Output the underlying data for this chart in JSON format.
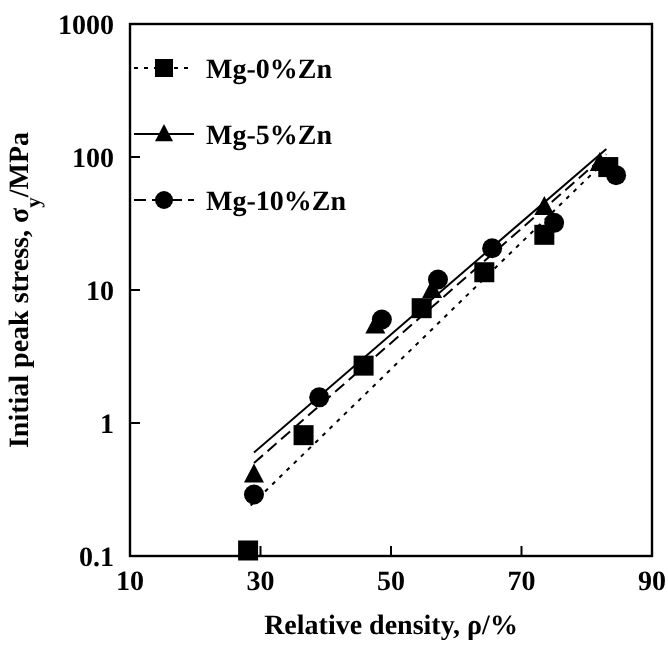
{
  "chart_data": {
    "type": "scatter",
    "xlabel": "Relative density, ρ/%",
    "ylabel": "Initial  peak stress, σ$_{y}$/MPa",
    "log": "y",
    "grid": false,
    "legend": "top left",
    "xlim": [
      10,
      90
    ],
    "xticks": [
      10,
      30,
      50,
      70,
      90
    ],
    "ylim": [
      0.1,
      1000
    ],
    "yticks": [
      0.1,
      1,
      10,
      100,
      1000
    ],
    "series": [
      {
        "name": "Mg-0%Zn",
        "color": "#000000",
        "marker": "square",
        "x": [
          28.1,
          36.6,
          45.8,
          54.7,
          64.3,
          73.5,
          83.3
        ],
        "values": [
          0.11,
          0.81,
          2.7,
          7.3,
          13.6,
          26,
          84
        ]
      },
      {
        "name": "Mg-5%Zn",
        "color": "#000000",
        "marker": "triangle",
        "x": [
          29,
          47.6,
          56.3,
          73.5,
          82
        ],
        "values": [
          0.41,
          5.4,
          10,
          42,
          90
        ]
      },
      {
        "name": "Mg-10%Zn",
        "color": "#000000",
        "marker": "circle",
        "x": [
          29,
          39,
          48.6,
          57.2,
          65.5,
          75,
          84.5
        ],
        "values": [
          0.29,
          1.56,
          6,
          12,
          20.6,
          32,
          73
        ]
      },
      {
        "type": "line",
        "color": "#000000",
        "line_style": "dotted",
        "x": [
          28.5,
          83
        ],
        "values": [
          0.24,
          95
        ]
      },
      {
        "type": "line",
        "color": "#000000",
        "line_style": "solid",
        "x": [
          29,
          83
        ],
        "values": [
          0.6,
          115
        ]
      },
      {
        "type": "line",
        "color": "#000000",
        "line_style": "dashed",
        "x": [
          29,
          83
        ],
        "values": [
          0.5,
          105
        ]
      }
    ]
  }
}
